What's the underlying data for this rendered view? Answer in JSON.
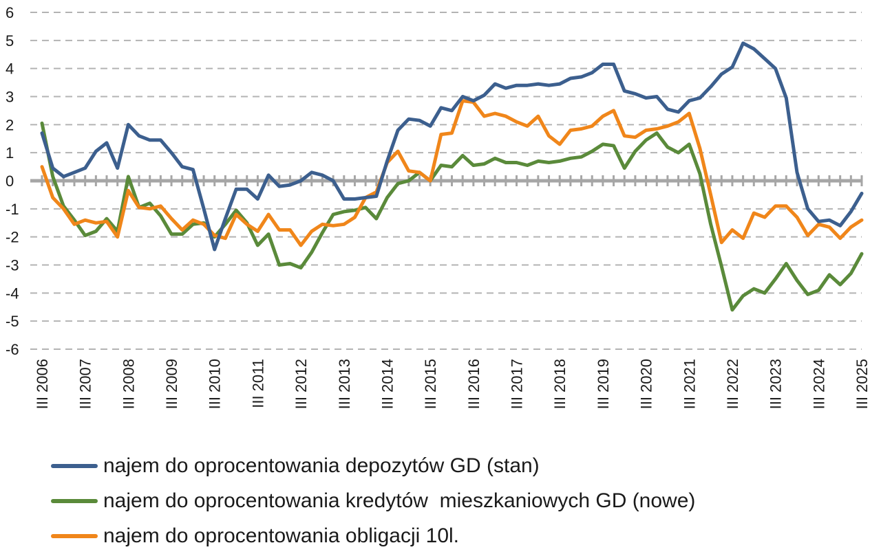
{
  "chart_data": {
    "type": "line",
    "title": "",
    "xlabel": "",
    "ylabel": "",
    "ylim": [
      -6,
      6
    ],
    "yticks": [
      6,
      5,
      4,
      3,
      2,
      1,
      0,
      -1,
      -2,
      -3,
      -4,
      -5,
      -6
    ],
    "grid": true,
    "legend_position": "bottom",
    "x_tick_labels": [
      "III 2006",
      "III 2007",
      "III 2008",
      "III 2009",
      "III 2010",
      "III 2011",
      "III 2012",
      "III 2013",
      "III 2014",
      "III 2015",
      "III 2016",
      "III 2017",
      "III 2018",
      "III 2019",
      "III 2020",
      "III 2021",
      "III 2022",
      "III 2023",
      "III 2024",
      "III 2025"
    ],
    "series": [
      {
        "name": "najem do oprocentowania depozytów GD (stan)",
        "color": "#3c5f8e",
        "values": [
          1.7,
          0.45,
          0.15,
          0.3,
          0.45,
          1.05,
          1.35,
          0.45,
          2.0,
          1.6,
          1.45,
          1.45,
          1.0,
          0.5,
          0.4,
          -1.0,
          -2.45,
          -1.35,
          -0.3,
          -0.3,
          -0.65,
          0.2,
          -0.2,
          -0.15,
          0.0,
          0.3,
          0.2,
          0.0,
          -0.65,
          -0.65,
          -0.6,
          -0.55,
          0.7,
          1.8,
          2.2,
          2.15,
          1.95,
          2.6,
          2.5,
          3.0,
          2.85,
          3.05,
          3.45,
          3.3,
          3.4,
          3.4,
          3.45,
          3.4,
          3.45,
          3.65,
          3.7,
          3.85,
          4.15,
          4.15,
          3.2,
          3.1,
          2.95,
          3.0,
          2.55,
          2.45,
          2.85,
          2.95,
          3.35,
          3.8,
          4.05,
          4.9,
          4.7,
          4.35,
          4.0,
          2.95,
          0.3,
          -1.0,
          -1.45,
          -1.4,
          -1.6,
          -1.1,
          -0.45
        ]
      },
      {
        "name": "najem do oprocentowania kredytów  mieszkaniowych GD (nowe)",
        "color": "#5a8a3a",
        "values": [
          2.05,
          0.15,
          -0.9,
          -1.4,
          -1.95,
          -1.8,
          -1.35,
          -1.8,
          0.15,
          -0.95,
          -0.8,
          -1.25,
          -1.9,
          -1.9,
          -1.55,
          -1.5,
          -2.0,
          -1.55,
          -1.05,
          -1.5,
          -2.3,
          -1.9,
          -3.0,
          -2.95,
          -3.1,
          -2.55,
          -1.85,
          -1.2,
          -1.1,
          -1.05,
          -0.95,
          -1.35,
          -0.6,
          -0.1,
          0.0,
          0.3,
          0.0,
          0.55,
          0.5,
          0.9,
          0.55,
          0.6,
          0.8,
          0.65,
          0.65,
          0.55,
          0.7,
          0.65,
          0.7,
          0.8,
          0.85,
          1.05,
          1.3,
          1.25,
          0.45,
          1.05,
          1.45,
          1.7,
          1.2,
          1.0,
          1.3,
          0.25,
          -1.55,
          -3.05,
          -4.6,
          -4.1,
          -3.85,
          -4.0,
          -3.5,
          -2.95,
          -3.55,
          -4.05,
          -3.9,
          -3.35,
          -3.7,
          -3.3,
          -2.6
        ]
      },
      {
        "name": "najem do oprocentowania obligacji 10l.",
        "color": "#f0861a",
        "values": [
          0.5,
          -0.6,
          -1.0,
          -1.55,
          -1.4,
          -1.5,
          -1.45,
          -2.0,
          -0.35,
          -0.95,
          -1.0,
          -0.9,
          -1.35,
          -1.75,
          -1.4,
          -1.55,
          -1.95,
          -2.05,
          -1.2,
          -1.55,
          -1.8,
          -1.2,
          -1.75,
          -1.75,
          -2.3,
          -1.8,
          -1.55,
          -1.6,
          -1.55,
          -1.3,
          -0.6,
          -0.4,
          0.65,
          1.05,
          0.35,
          0.3,
          0.0,
          1.65,
          1.7,
          2.85,
          2.8,
          2.3,
          2.4,
          2.3,
          2.1,
          1.95,
          2.3,
          1.6,
          1.3,
          1.8,
          1.85,
          1.95,
          2.3,
          2.5,
          1.6,
          1.55,
          1.8,
          1.85,
          1.95,
          2.1,
          2.4,
          1.15,
          -0.5,
          -2.2,
          -1.75,
          -2.05,
          -1.15,
          -1.3,
          -0.9,
          -0.9,
          -1.3,
          -1.95,
          -1.55,
          -1.65,
          -2.05,
          -1.65,
          -1.4
        ]
      }
    ]
  }
}
